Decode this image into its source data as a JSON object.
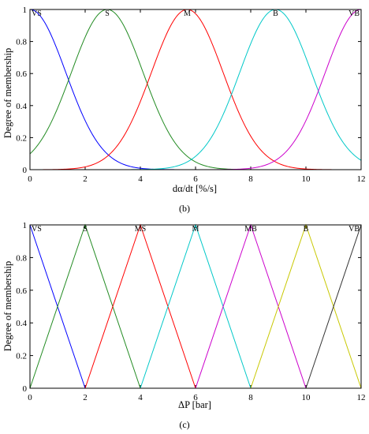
{
  "chart_data": [
    {
      "type": "line",
      "panel_label": "(b)",
      "xlabel": "dα/dt [%/s]",
      "ylabel": "Degree of membership",
      "xlim": [
        0,
        12
      ],
      "ylim": [
        0,
        1
      ],
      "xticks": [
        0,
        2,
        4,
        6,
        8,
        10,
        12
      ],
      "yticks": [
        0,
        0.2,
        0.4,
        0.6,
        0.8,
        1
      ],
      "ytick_labels": [
        "0",
        "0.2",
        "0.4",
        "0.6",
        "0.8",
        "1"
      ],
      "grid": false,
      "shape": "gaussian",
      "sigma": 1.3,
      "series": [
        {
          "name": "VS",
          "center": 0,
          "color": "#0000ff"
        },
        {
          "name": "S",
          "center": 2.8,
          "color": "#228b22"
        },
        {
          "name": "M",
          "center": 5.7,
          "color": "#ff0000"
        },
        {
          "name": "B",
          "center": 8.9,
          "color": "#00c8c8"
        },
        {
          "name": "VB",
          "center": 12,
          "color": "#cc00cc"
        }
      ]
    },
    {
      "type": "line",
      "panel_label": "(c)",
      "xlabel": "ΔP [bar]",
      "ylabel": "Degree of membership",
      "xlim": [
        0,
        12
      ],
      "ylim": [
        0,
        1
      ],
      "xticks": [
        0,
        2,
        4,
        6,
        8,
        10,
        12
      ],
      "yticks": [
        0,
        0.2,
        0.4,
        0.6,
        0.8,
        1
      ],
      "ytick_labels": [
        "0",
        "0.2",
        "0.4",
        "0.6",
        "0.8",
        "1"
      ],
      "grid": false,
      "shape": "triangular",
      "series": [
        {
          "name": "VS",
          "x": [
            0,
            2
          ],
          "y": [
            1,
            0
          ],
          "color": "#0000ff"
        },
        {
          "name": "S",
          "x": [
            0,
            2,
            4
          ],
          "y": [
            0,
            1,
            0
          ],
          "color": "#228b22"
        },
        {
          "name": "MS",
          "x": [
            2,
            4,
            6
          ],
          "y": [
            0,
            1,
            0
          ],
          "color": "#ff0000"
        },
        {
          "name": "M",
          "x": [
            4,
            6,
            8
          ],
          "y": [
            0,
            1,
            0
          ],
          "color": "#00c8c8"
        },
        {
          "name": "MB",
          "x": [
            6,
            8,
            10
          ],
          "y": [
            0,
            1,
            0
          ],
          "color": "#cc00cc"
        },
        {
          "name": "B",
          "x": [
            8,
            10,
            12
          ],
          "y": [
            0,
            1,
            0
          ],
          "color": "#c8c800"
        },
        {
          "name": "VB",
          "x": [
            10,
            12
          ],
          "y": [
            0,
            1
          ],
          "color": "#333333"
        }
      ]
    }
  ]
}
